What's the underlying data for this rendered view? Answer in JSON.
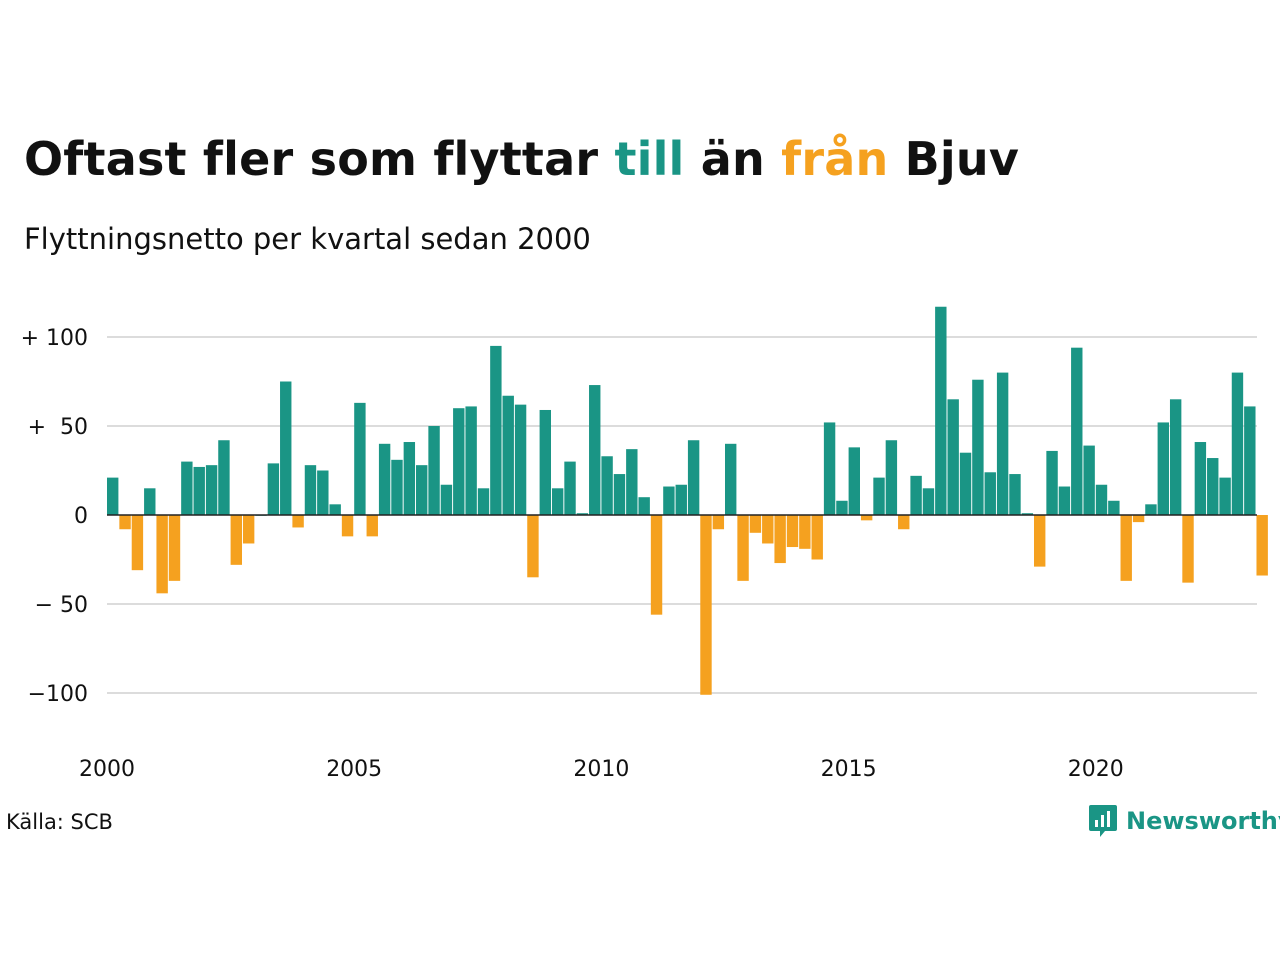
{
  "header": {
    "title_parts": [
      "Oftast fler som flyttar ",
      "till",
      " än ",
      "från",
      " Bjuv"
    ],
    "subtitle": "Flyttningsnetto per kvartal sedan 2000"
  },
  "colors": {
    "positive": "#1a9585",
    "negative": "#f5a11f",
    "grid": "#dcdcdc",
    "text": "#111111"
  },
  "footer": {
    "source": "Källa: SCB",
    "brand": "Newsworthy"
  },
  "chart_data": {
    "type": "bar",
    "title": "",
    "xlabel": "",
    "ylabel": "",
    "ylim": [
      -112,
      122
    ],
    "grid": true,
    "y_ticks": [
      100,
      50,
      0,
      -50,
      -100
    ],
    "y_tick_labels": [
      "+ 100",
      "+  50",
      "0",
      "− 50",
      "−100"
    ],
    "x_ticks": [
      2000,
      2005,
      2010,
      2015,
      2020
    ],
    "x_tick_labels": [
      "2000",
      "2005",
      "2010",
      "2015",
      "2020"
    ],
    "start_year": 2000,
    "periods_per_year": 4,
    "values": [
      21,
      -8,
      -31,
      15,
      -44,
      -37,
      30,
      27,
      28,
      42,
      -28,
      -16,
      0,
      29,
      75,
      -7,
      28,
      25,
      6,
      -12,
      63,
      -12,
      40,
      31,
      41,
      28,
      50,
      17,
      60,
      61,
      15,
      95,
      67,
      62,
      -35,
      59,
      15,
      30,
      1,
      73,
      33,
      23,
      37,
      10,
      -56,
      16,
      17,
      42,
      -101,
      -8,
      40,
      -37,
      -10,
      -16,
      -27,
      -18,
      -19,
      -25,
      52,
      8,
      38,
      -3,
      21,
      42,
      -8,
      22,
      15,
      117,
      65,
      35,
      76,
      24,
      80,
      23,
      1,
      -29,
      36,
      16,
      94,
      39,
      17,
      8,
      -37,
      -4,
      6,
      52,
      65,
      -38,
      41,
      32,
      21,
      80,
      61,
      -34
    ]
  }
}
